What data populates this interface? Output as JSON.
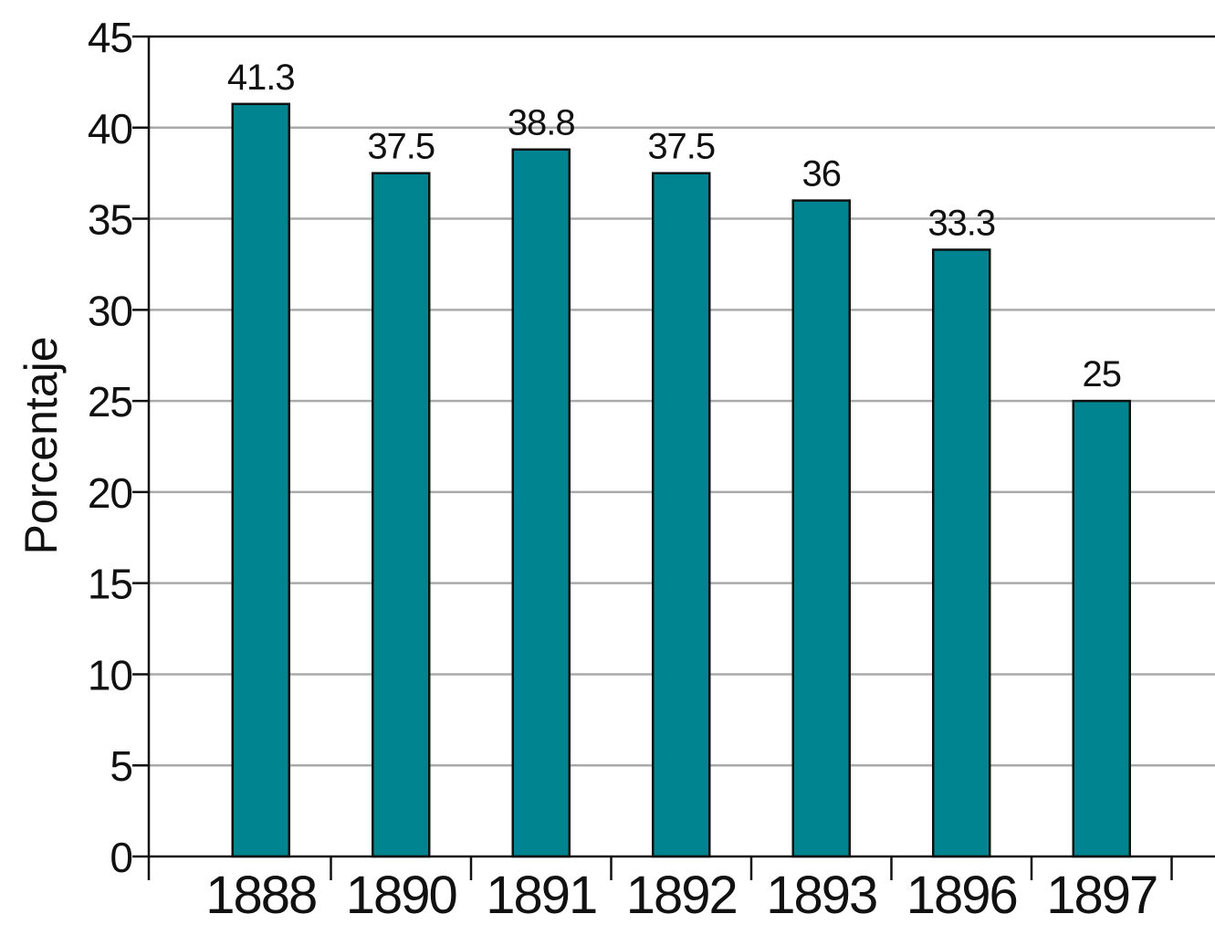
{
  "chart_data": {
    "type": "bar",
    "categories": [
      "1888",
      "1890",
      "1891",
      "1892",
      "1893",
      "1896",
      "1897"
    ],
    "values": [
      41.3,
      37.5,
      38.8,
      37.5,
      36,
      33.3,
      25
    ],
    "data_labels": [
      "41.3",
      "37.5",
      "38.8",
      "37.5",
      "36",
      "33.3",
      "25"
    ],
    "title": "",
    "xlabel": "",
    "ylabel": "Porcentaje",
    "ylim": [
      0,
      45
    ],
    "yticks": [
      0,
      5,
      10,
      15,
      20,
      25,
      30,
      35,
      40,
      45
    ],
    "grid": true,
    "legend": "none",
    "colors": {
      "bar": "#00848f",
      "grid": "#aaaaaa",
      "axis": "#111111"
    }
  }
}
